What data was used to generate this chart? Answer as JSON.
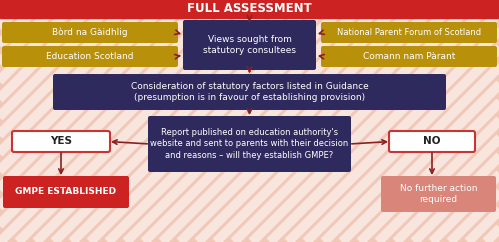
{
  "title": "FULL ASSESSMENT",
  "title_bg": "#cc2222",
  "title_color": "#ffffff",
  "bg_base": "#f0c8b8",
  "stripe_color": "#ffffff",
  "gold_color": "#b8900a",
  "gold_text": "#ffffff",
  "navy_color": "#2e2a5e",
  "navy_text": "#ffffff",
  "red_box_color": "#cc2222",
  "red_box_text": "#ffffff",
  "pink_box_color": "#d9857a",
  "pink_box_text": "#ffffff",
  "white_box_outline": "#cc3333",
  "arrow_color": "#8b2020",
  "consultees_label": "Views sought from\nstatutory consultees",
  "left_consultees": [
    "Bòrd na Gàidhlig",
    "Education Scotland"
  ],
  "right_consultees": [
    "National Parent Forum of Scotland",
    "Comann nam Pàrant"
  ],
  "consideration_text": "Consideration of statutory factors listed in Guidance\n(presumption is in favour of establishing provision)",
  "report_text": "Report published on education authority's\nwebsite and sent to parents with their decision\nand reasons – will they establish GMPE?",
  "yes_label": "YES",
  "no_label": "NO",
  "gmpe_text": "GMPE ESTABLISHED",
  "no_action_text": "No further action\nrequired"
}
